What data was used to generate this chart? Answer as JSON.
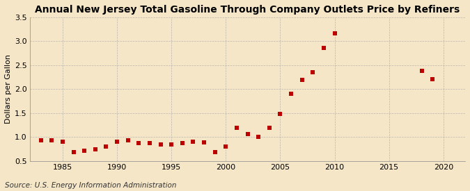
{
  "title": "Annual New Jersey Total Gasoline Through Company Outlets Price by Refiners",
  "ylabel": "Dollars per Gallon",
  "source": "Source: U.S. Energy Information Administration",
  "background_color": "#f5e6c8",
  "plot_bg_color": "#fdf6e3",
  "marker_color": "#bb0000",
  "years": [
    1983,
    1984,
    1985,
    1986,
    1987,
    1988,
    1989,
    1990,
    1991,
    1992,
    1993,
    1994,
    1995,
    1996,
    1997,
    1998,
    1999,
    2000,
    2001,
    2002,
    2003,
    2004,
    2005,
    2006,
    2007,
    2008,
    2009,
    2010,
    2018,
    2019
  ],
  "values": [
    0.93,
    0.94,
    0.91,
    0.69,
    0.72,
    0.75,
    0.8,
    0.91,
    0.93,
    0.88,
    0.87,
    0.84,
    0.84,
    0.88,
    0.9,
    0.89,
    0.69,
    0.8,
    1.2,
    1.06,
    1.0,
    1.2,
    1.48,
    1.91,
    2.2,
    2.35,
    2.86,
    3.17,
    2.38,
    2.21
  ],
  "xlim": [
    1982,
    2022
  ],
  "ylim": [
    0.5,
    3.5
  ],
  "xticks": [
    1985,
    1990,
    1995,
    2000,
    2005,
    2010,
    2015,
    2020
  ],
  "yticks": [
    0.5,
    1.0,
    1.5,
    2.0,
    2.5,
    3.0,
    3.5
  ],
  "ytick_labels": [
    "0.5",
    "1.0",
    "1.5",
    "2.0",
    "2.5",
    "3.0",
    "3.5"
  ],
  "grid_color": "#aaaaaa",
  "title_fontsize": 10,
  "axis_fontsize": 8,
  "source_fontsize": 7.5,
  "marker_size": 18
}
